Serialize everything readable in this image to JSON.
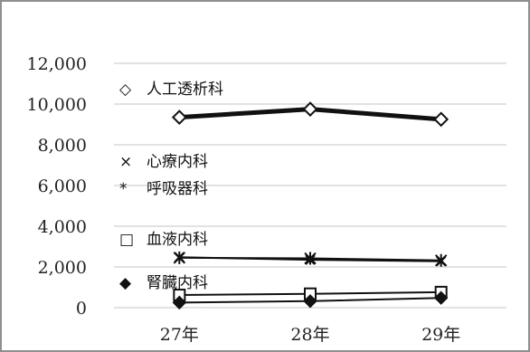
{
  "chart_data": {
    "type": "line",
    "categories": [
      "27年",
      "28年",
      "29年"
    ],
    "ylim": [
      0,
      12000
    ],
    "yticks": [
      "0",
      "2,000",
      "4,000",
      "6,000",
      "8,000",
      "10,000",
      "12,000"
    ],
    "ytick_values": [
      0,
      2000,
      4000,
      6000,
      8000,
      10000,
      12000
    ],
    "grid": true,
    "legend_placement": "inside-left",
    "series": [
      {
        "name": "人工透析科",
        "marker": "diamond-open",
        "symbol": "◇",
        "line_weight": "heavy",
        "values": [
          9350,
          9750,
          9250
        ]
      },
      {
        "name": "心療内科",
        "marker": "x",
        "symbol": "×",
        "line_weight": "normal",
        "values": [
          2480,
          2350,
          2280
        ]
      },
      {
        "name": "呼吸器科",
        "marker": "asterisk",
        "symbol": "*",
        "line_weight": "normal",
        "values": [
          2450,
          2420,
          2320
        ]
      },
      {
        "name": "血液内科",
        "marker": "square-open",
        "symbol": "□",
        "line_weight": "normal",
        "values": [
          620,
          680,
          760
        ]
      },
      {
        "name": "腎臓内科",
        "marker": "diamond-filled",
        "symbol": "◆",
        "line_weight": "normal",
        "values": [
          250,
          320,
          480
        ]
      }
    ],
    "colors": {
      "line": "#111111",
      "grid": "#c4c4c4",
      "frame": "#8f8f8f"
    }
  }
}
